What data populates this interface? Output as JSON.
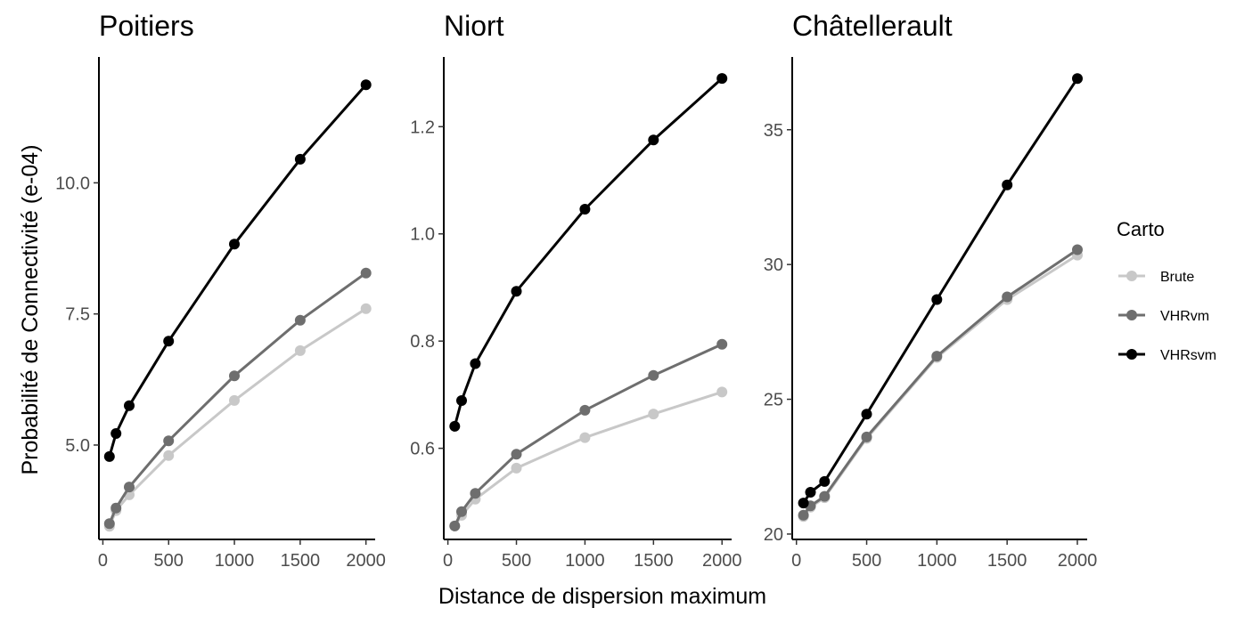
{
  "chart_data": {
    "type": "line",
    "xlabel": "Distance de dispersion maximum",
    "ylabel": "Probabilité de Connectivité  (e-04)",
    "legend": {
      "title": "Carto",
      "position": "right",
      "entries": [
        "Brute",
        "VHRvm",
        "VHRsvm"
      ]
    },
    "colors": {
      "Brute": "#c8c8c8",
      "VHRvm": "#6e6e6e",
      "VHRsvm": "#000000"
    },
    "x": [
      50,
      100,
      200,
      500,
      1000,
      1500,
      2000
    ],
    "xticks": [
      "0",
      "500",
      "1000",
      "1500",
      "2000"
    ],
    "panels": [
      {
        "title": "Poitiers",
        "xlim": [
          -30,
          2070
        ],
        "ylim": [
          3.2,
          12.4
        ],
        "yticks": [
          "5.0",
          "7.5",
          "10.0"
        ],
        "series": [
          {
            "name": "Brute",
            "values": [
              3.45,
              3.75,
              4.05,
              4.8,
              5.85,
              6.8,
              7.6
            ]
          },
          {
            "name": "VHRvm",
            "values": [
              3.5,
              3.8,
              4.2,
              5.08,
              6.32,
              7.38,
              8.28
            ]
          },
          {
            "name": "VHRsvm",
            "values": [
              4.78,
              5.22,
              5.75,
              6.98,
              8.83,
              10.45,
              11.87
            ]
          }
        ]
      },
      {
        "title": "Niort",
        "xlim": [
          -30,
          2070
        ],
        "ylim": [
          0.43,
          1.33
        ],
        "yticks": [
          "0.6",
          "0.8",
          "1.0",
          "1.2"
        ],
        "series": [
          {
            "name": "Brute",
            "values": [
              0.455,
              0.475,
              0.505,
              0.563,
              0.62,
              0.664,
              0.705
            ]
          },
          {
            "name": "VHRvm",
            "values": [
              0.455,
              0.482,
              0.516,
              0.589,
              0.671,
              0.736,
              0.794
            ]
          },
          {
            "name": "VHRsvm",
            "values": [
              0.641,
              0.689,
              0.758,
              0.893,
              1.046,
              1.175,
              1.29
            ]
          }
        ]
      },
      {
        "title": "Châtellerault",
        "xlim": [
          -30,
          2070
        ],
        "ylim": [
          19.8,
          37.7
        ],
        "yticks": [
          "20",
          "25",
          "30",
          "35"
        ],
        "series": [
          {
            "name": "Brute",
            "values": [
              20.65,
              21.0,
              21.35,
              23.55,
              26.55,
              28.7,
              30.35
            ]
          },
          {
            "name": "VHRvm",
            "values": [
              20.7,
              21.05,
              21.4,
              23.6,
              26.6,
              28.8,
              30.55
            ]
          },
          {
            "name": "VHRsvm",
            "values": [
              21.15,
              21.55,
              21.95,
              24.45,
              28.7,
              32.95,
              36.9
            ]
          }
        ]
      }
    ]
  }
}
